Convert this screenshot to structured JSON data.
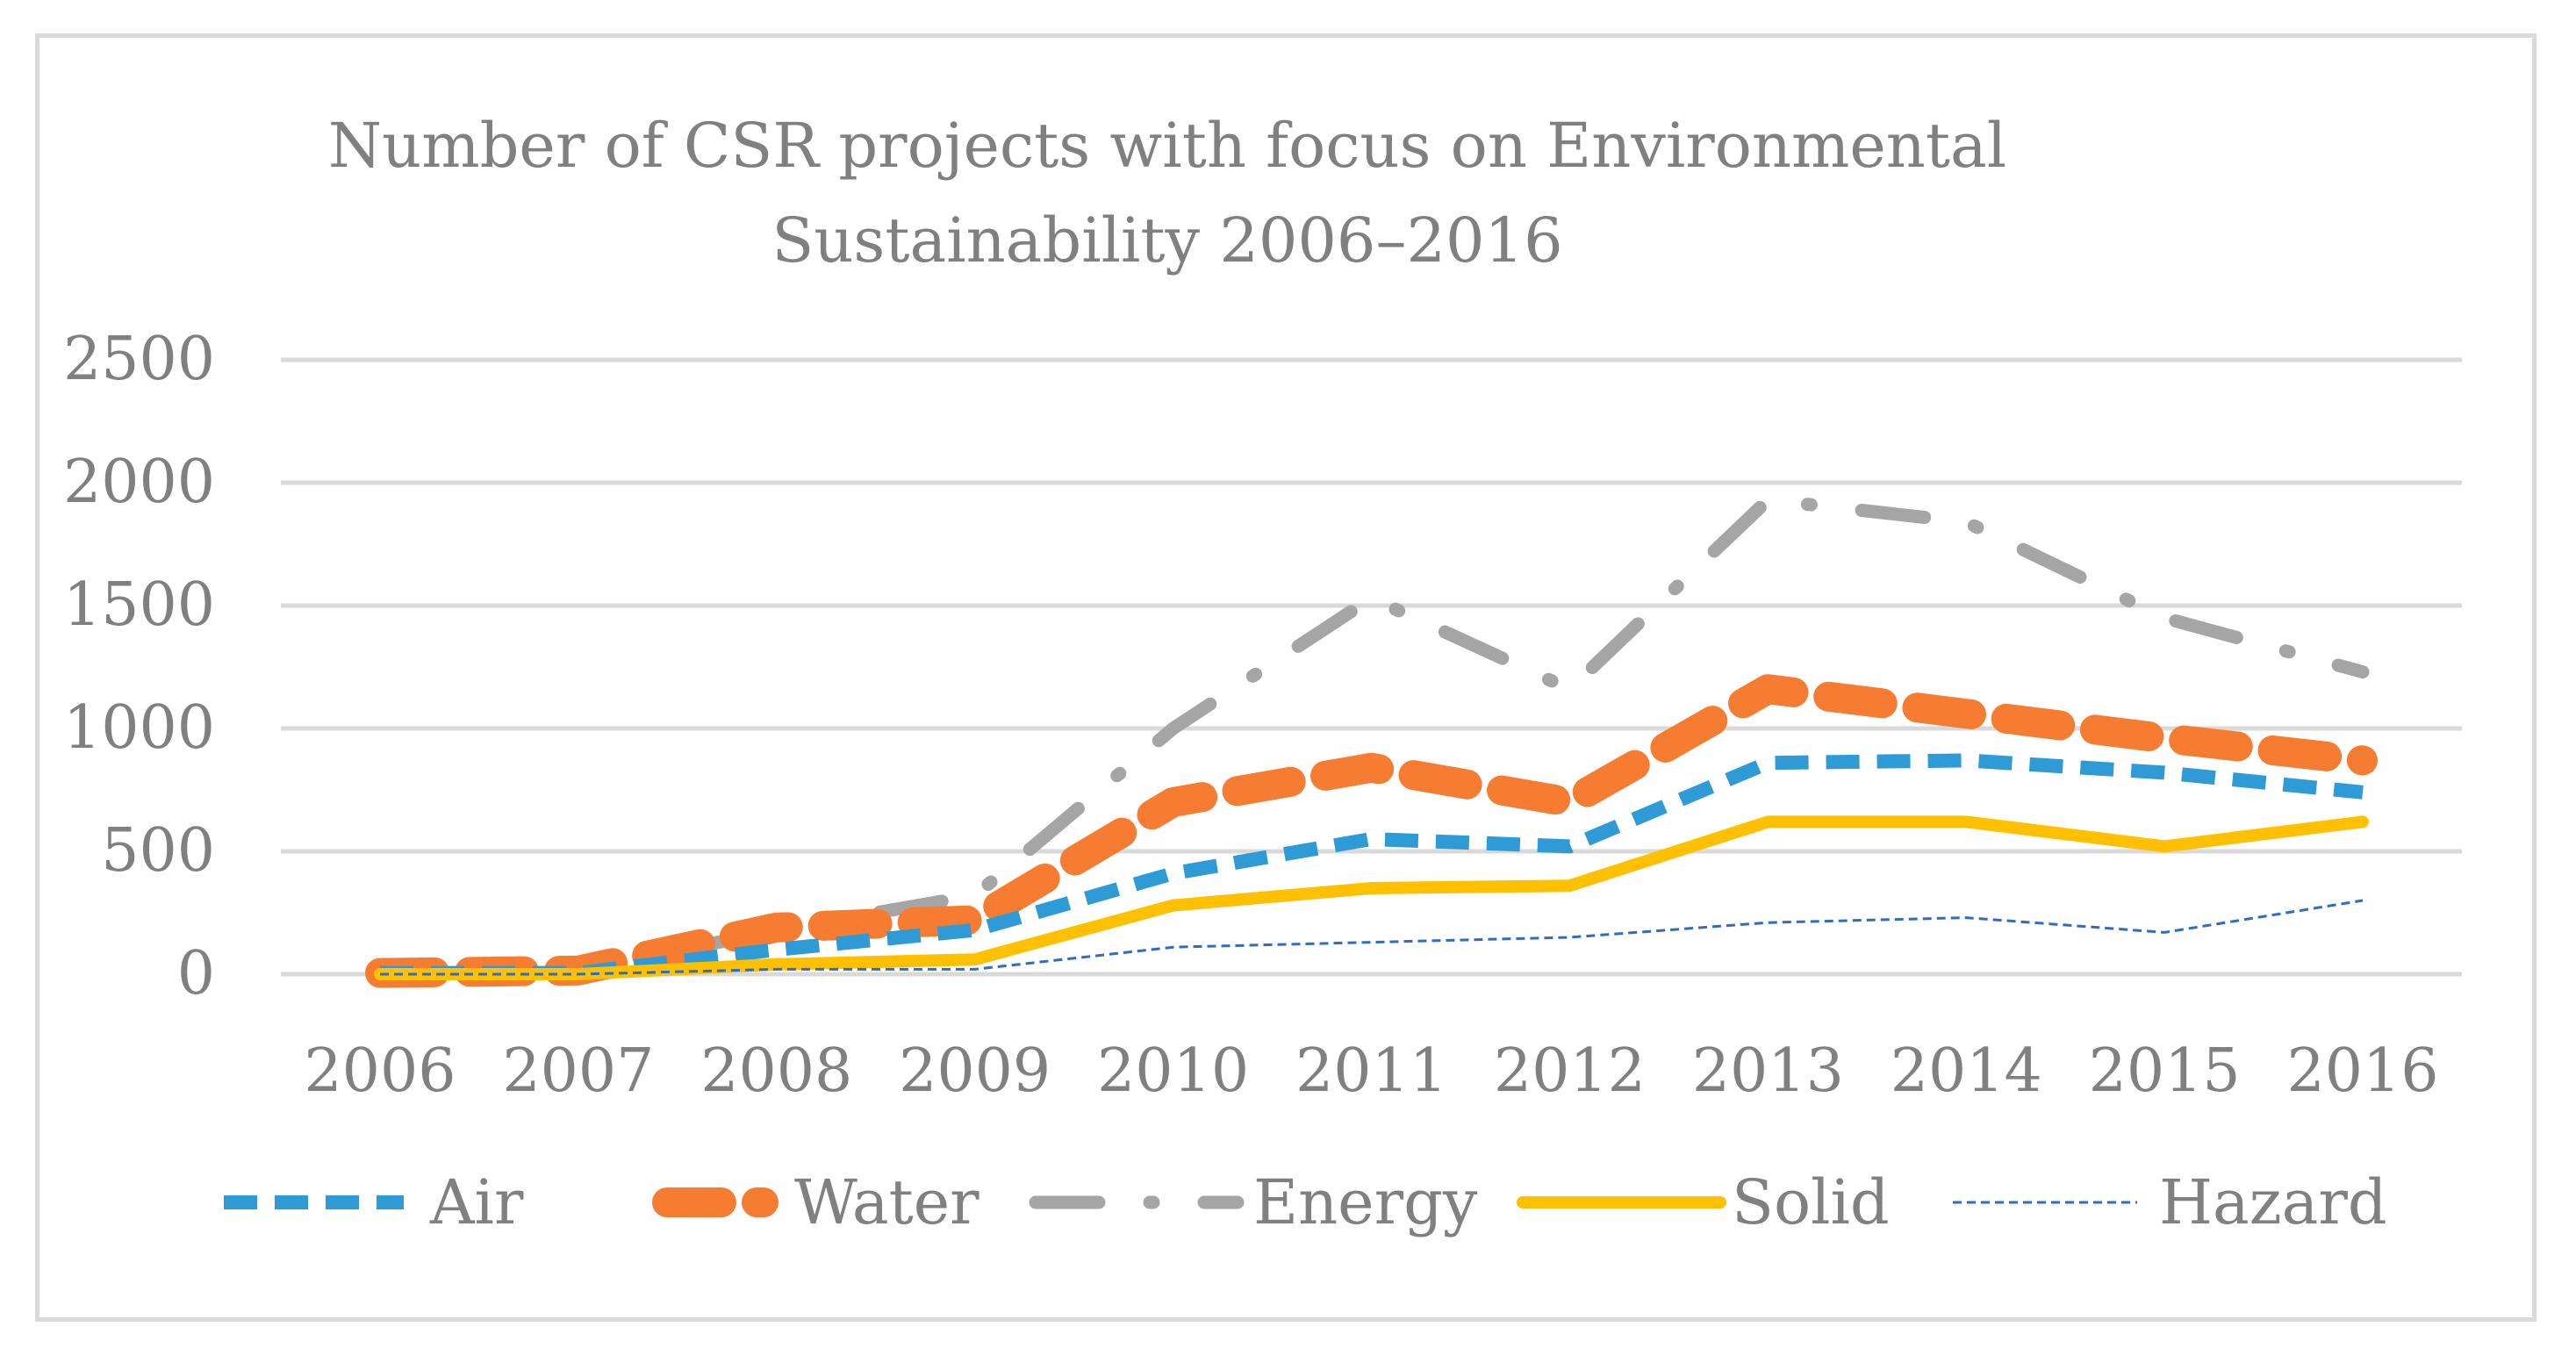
{
  "chart_data": {
    "type": "line",
    "title": "Number of CSR projects with focus on Environmental Sustainability 2006–2016",
    "title_lines": [
      "Number of CSR projects with focus on Environmental",
      "Sustainability 2006–2016"
    ],
    "categories": [
      "2006",
      "2007",
      "2008",
      "2009",
      "2010",
      "2011",
      "2012",
      "2013",
      "2014",
      "2015",
      "2016"
    ],
    "y_ticks": [
      "0",
      "500",
      "1000",
      "1500",
      "2000",
      "2500"
    ],
    "ylim": [
      0,
      2500
    ],
    "grid": true,
    "legend_position": "bottom",
    "xlabel": "",
    "ylabel": "",
    "series": [
      {
        "name": "Air",
        "color": "#2e9bd6",
        "style": "dash",
        "values": [
          5,
          5,
          100,
          180,
          410,
          550,
          520,
          860,
          870,
          820,
          740
        ]
      },
      {
        "name": "Water",
        "color": "#f57c31",
        "style": "long-dash",
        "values": [
          5,
          15,
          190,
          220,
          700,
          840,
          700,
          1160,
          1060,
          960,
          870
        ]
      },
      {
        "name": "Energy",
        "color": "#a5a5a5",
        "style": "dash-dot",
        "values": [
          5,
          10,
          180,
          320,
          1000,
          1530,
          1160,
          1930,
          1840,
          1450,
          1230
        ]
      },
      {
        "name": "Solid",
        "color": "#ffc000",
        "style": "solid",
        "values": [
          0,
          0,
          40,
          60,
          280,
          350,
          360,
          620,
          620,
          520,
          620
        ]
      },
      {
        "name": "Hazard",
        "color": "#2f6cc4",
        "style": "thin-dash",
        "values": [
          0,
          0,
          20,
          20,
          110,
          130,
          150,
          210,
          230,
          170,
          300
        ]
      }
    ]
  }
}
